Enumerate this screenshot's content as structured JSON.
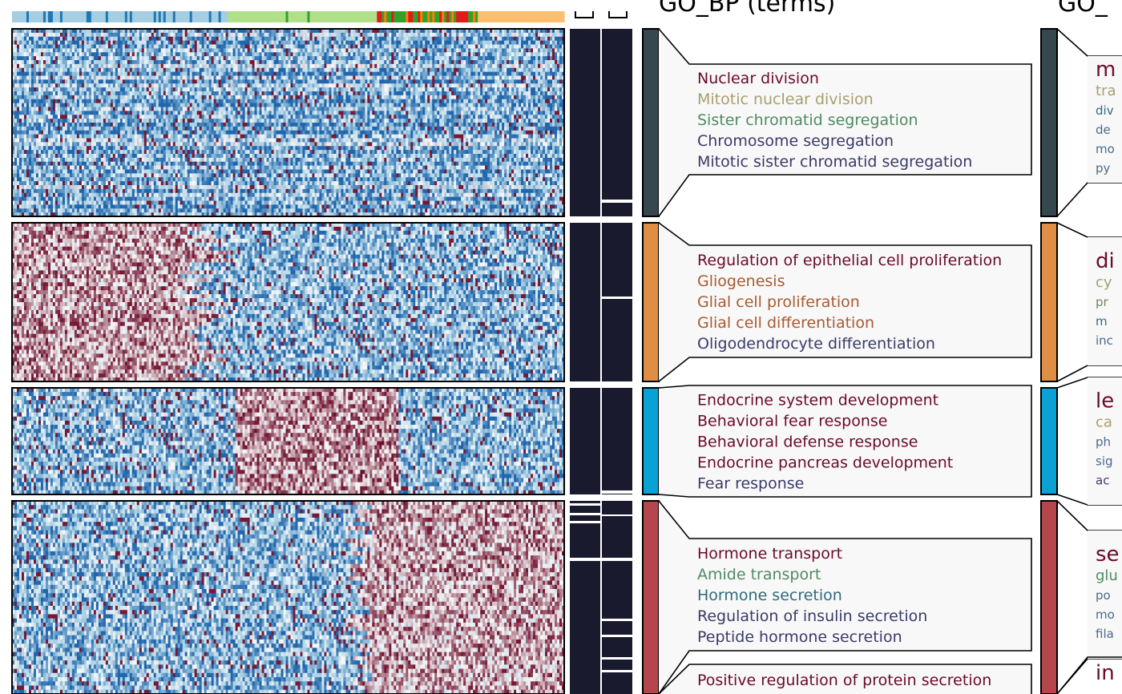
{
  "chart_data": {
    "type": "heatmap",
    "title": "GO_BP (terms)",
    "title_right": "GO_",
    "palette": {
      "low": "#2166ac",
      "mid": "#f7f7f7",
      "high": "#67001f"
    },
    "top_annotation_colors": [
      "#a6cee3",
      "#1f78b4",
      "#b2df8a",
      "#33a02c",
      "#e31a1c",
      "#fdbf6f",
      "#ff7f00"
    ],
    "clusters": [
      {
        "id": 1,
        "color": "#37474f",
        "gene_rows": 48,
        "pattern": "low",
        "terms": [
          {
            "text": "Nuclear division",
            "color": "#6b0a2c"
          },
          {
            "text": "Mitotic nuclear division",
            "color": "#a89f6d"
          },
          {
            "text": "Sister chromatid segregation",
            "color": "#4f8a62"
          },
          {
            "text": "Chromosome segregation",
            "color": "#3a3a6b"
          },
          {
            "text": "Mitotic sister chromatid segregation",
            "color": "#3a3a6b"
          }
        ],
        "keywords": [
          {
            "text": "m",
            "color": "#6b0a2c"
          },
          {
            "text": "tra",
            "color": "#a89f6d"
          },
          {
            "text": "div",
            "color": "#2f6a7a"
          },
          {
            "text": "de",
            "color": "#4a6a8a"
          },
          {
            "text": "mo",
            "color": "#4a6a8a"
          },
          {
            "text": "py",
            "color": "#4a6a8a"
          }
        ]
      },
      {
        "id": 2,
        "color": "#de8f45",
        "gene_rows": 40,
        "pattern": "early",
        "terms": [
          {
            "text": "Regulation of epithelial cell proliferation",
            "color": "#6b0a2c"
          },
          {
            "text": "Gliogenesis",
            "color": "#a85a30"
          },
          {
            "text": "Glial cell proliferation",
            "color": "#a85a30"
          },
          {
            "text": "Glial cell differentiation",
            "color": "#a85a30"
          },
          {
            "text": "Oligodendrocyte differentiation",
            "color": "#3a3a6b"
          }
        ],
        "keywords": [
          {
            "text": "di",
            "color": "#6b0a2c"
          },
          {
            "text": "cy",
            "color": "#a89f6d"
          },
          {
            "text": "pr",
            "color": "#6a8a5a"
          },
          {
            "text": "m",
            "color": "#2f6a7a"
          },
          {
            "text": "inc",
            "color": "#4a6a8a"
          }
        ]
      },
      {
        "id": 3,
        "color": "#0aa2d4",
        "gene_rows": 26,
        "pattern": "mid",
        "terms": [
          {
            "text": "Endocrine system development",
            "color": "#6b0a2c"
          },
          {
            "text": "Behavioral fear response",
            "color": "#6b0a2c"
          },
          {
            "text": "Behavioral defense response",
            "color": "#6b0a2c"
          },
          {
            "text": "Endocrine pancreas development",
            "color": "#6b0a2c"
          },
          {
            "text": "Fear response",
            "color": "#3a3a6b"
          }
        ],
        "keywords": [
          {
            "text": "le",
            "color": "#6b0a2c"
          },
          {
            "text": "ca",
            "color": "#a89f6d"
          },
          {
            "text": "ph",
            "color": "#4a6a8a"
          },
          {
            "text": "sig",
            "color": "#4a6a8a"
          },
          {
            "text": "ac",
            "color": "#3a3a6b"
          }
        ]
      },
      {
        "id": 4,
        "color": "#b5464b",
        "gene_rows": 46,
        "pattern": "late",
        "terms": [
          {
            "text": "Hormone transport",
            "color": "#6b0a2c"
          },
          {
            "text": "Amide transport",
            "color": "#4f8a62"
          },
          {
            "text": "Hormone secretion",
            "color": "#2f6a7a"
          },
          {
            "text": "Regulation of insulin secretion",
            "color": "#3a3a6b"
          },
          {
            "text": "Peptide hormone secretion",
            "color": "#3a3a6b"
          }
        ],
        "terms_extra": [
          {
            "text": "Positive regulation of protein secretion",
            "color": "#6b0a2c"
          }
        ],
        "keywords": [
          {
            "text": "se",
            "color": "#6b0a2c"
          },
          {
            "text": "glu",
            "color": "#4f8a62"
          },
          {
            "text": "po",
            "color": "#4a6a8a"
          },
          {
            "text": "mo",
            "color": "#4a6a8a"
          },
          {
            "text": "fila",
            "color": "#4a6a8a"
          }
        ],
        "keywords_extra": [
          {
            "text": "in",
            "color": "#6b0a2c"
          }
        ]
      }
    ],
    "n_samples": 230,
    "legend": "none",
    "grid": false
  }
}
